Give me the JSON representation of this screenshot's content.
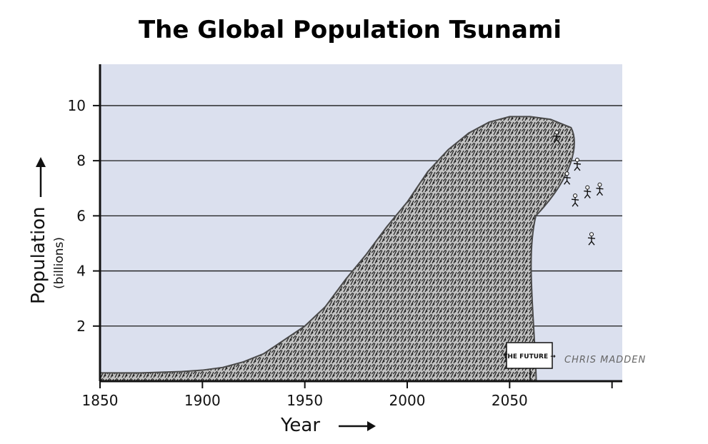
{
  "chart_data": {
    "type": "area",
    "title": "The Global Population Tsunami",
    "xlabel": "Year",
    "ylabel": "Population",
    "ylabel_sub": "(billions)",
    "x_ticks": [
      "1850",
      "1900",
      "1950",
      "2000",
      "2050"
    ],
    "y_ticks": [
      "2",
      "4",
      "6",
      "8",
      "10"
    ],
    "xlim": [
      1850,
      2105
    ],
    "ylim": [
      0,
      11.5
    ],
    "grid": true,
    "series": [
      {
        "x": [
          1850,
          1870,
          1890,
          1900,
          1910,
          1920,
          1930,
          1940,
          1950,
          1960,
          1970,
          1980,
          1990,
          2000,
          2010,
          2020,
          2030,
          2040,
          2050,
          2060,
          2070,
          2080
        ],
        "values": [
          0.3,
          0.3,
          0.35,
          0.4,
          0.5,
          0.7,
          1.0,
          1.5,
          2.0,
          2.7,
          3.7,
          4.6,
          5.6,
          6.5,
          7.6,
          8.4,
          9.0,
          9.4,
          9.6,
          9.6,
          9.5,
          9.2
        ]
      }
    ],
    "annotations": {
      "sign": "THE FUTURE →",
      "signature": "CHRIS MADDEN"
    },
    "colors": {
      "background": "#dbe0ee",
      "wave": "#4a4a4a",
      "grid": "#1a1a1a"
    }
  }
}
